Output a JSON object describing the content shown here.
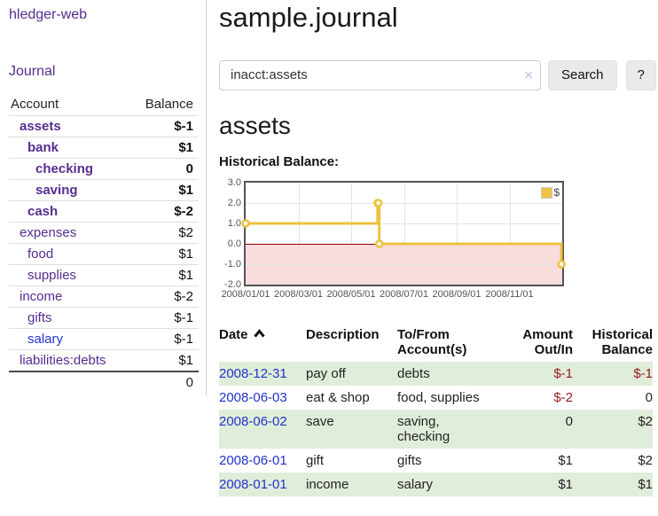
{
  "sidebar": {
    "brand": "hledger-web",
    "journal_link": "Journal",
    "accounts": {
      "col_account": "Account",
      "col_balance": "Balance",
      "rows": [
        {
          "account": "assets",
          "balance": "$-1",
          "indent": 1,
          "bold": true,
          "balance_class": "neg-strong",
          "link_class": "visited"
        },
        {
          "account": "bank",
          "balance": "$1",
          "indent": 2,
          "bold": true,
          "balance_class": "",
          "link_class": "visited"
        },
        {
          "account": "checking",
          "balance": "0",
          "indent": 3,
          "bold": true,
          "balance_class": "",
          "link_class": "visited"
        },
        {
          "account": "saving",
          "balance": "$1",
          "indent": 3,
          "bold": true,
          "balance_class": "",
          "link_class": "visited"
        },
        {
          "account": "cash",
          "balance": "$-2",
          "indent": 2,
          "bold": true,
          "balance_class": "neg-strong",
          "link_class": "visited"
        },
        {
          "account": "expenses",
          "balance": "$2",
          "indent": 1,
          "bold": false,
          "balance_class": "",
          "link_class": "visited"
        },
        {
          "account": "food",
          "balance": "$1",
          "indent": 2,
          "bold": false,
          "balance_class": "",
          "link_class": "visited"
        },
        {
          "account": "supplies",
          "balance": "$1",
          "indent": 2,
          "bold": false,
          "balance_class": "",
          "link_class": "visited"
        },
        {
          "account": "income",
          "balance": "$-2",
          "indent": 1,
          "bold": false,
          "balance_class": "neg-soft",
          "link_class": "visited"
        },
        {
          "account": "gifts",
          "balance": "$-1",
          "indent": 2,
          "bold": false,
          "balance_class": "neg-soft",
          "link_class": "visited"
        },
        {
          "account": "salary",
          "balance": "$-1",
          "indent": 2,
          "bold": false,
          "balance_class": "neg-soft",
          "link_class": "unvisited"
        },
        {
          "account": "liabilities:debts",
          "balance": "$1",
          "indent": 1,
          "bold": false,
          "balance_class": "",
          "link_class": "visited"
        }
      ],
      "total": "0"
    }
  },
  "main": {
    "title": "sample.journal",
    "search": {
      "value": "inacct:assets",
      "clear": "×",
      "search_button": "Search",
      "help_button": "?"
    },
    "heading": "assets",
    "chart_title": "Historical Balance:"
  },
  "chart_data": {
    "type": "line",
    "step": true,
    "title": "Historical Balance:",
    "series": [
      {
        "name": "$",
        "color": "#EDC240",
        "points": [
          [
            "2008/01/01",
            1
          ],
          [
            "2008/06/01",
            2
          ],
          [
            "2008/06/02",
            2
          ],
          [
            "2008/06/03",
            0
          ],
          [
            "2008/12/31",
            -1
          ]
        ]
      }
    ],
    "x_tick_labels": [
      "2008/01/01",
      "2008/03/01",
      "2008/05/01",
      "2008/07/01",
      "2008/09/01",
      "2008/11/01"
    ],
    "y_tick_labels": [
      "3.0",
      "2.0",
      "1.0",
      "0.0",
      "-1.0",
      "-2.0"
    ],
    "ylim": [
      -2,
      3
    ],
    "x_months_span": 12,
    "grid": true,
    "negative_region_color": "#f9dcdc",
    "zero_line_color": "#8b0000",
    "legend_position": "top-right"
  },
  "register": {
    "headers": {
      "date": "Date",
      "description": "Description",
      "accounts": "To/From\nAccount(s)",
      "amount": "Amount\nOut/In",
      "balance": "Historical\nBalance"
    },
    "sort_icon": "chevron-up",
    "rows": [
      {
        "date": "2008-12-31",
        "description": "pay off",
        "accounts": "debts",
        "amount": "$-1",
        "balance": "$-1",
        "amount_neg": true,
        "balance_neg": true
      },
      {
        "date": "2008-06-03",
        "description": "eat & shop",
        "accounts": "food, supplies",
        "amount": "$-2",
        "balance": "0",
        "amount_neg": true,
        "balance_neg": false
      },
      {
        "date": "2008-06-02",
        "description": "save",
        "accounts": "saving,\nchecking",
        "amount": "0",
        "balance": "$2",
        "amount_neg": false,
        "balance_neg": false
      },
      {
        "date": "2008-06-01",
        "description": "gift",
        "accounts": "gifts",
        "amount": "$1",
        "balance": "$2",
        "amount_neg": false,
        "balance_neg": false
      },
      {
        "date": "2008-01-01",
        "description": "income",
        "accounts": "salary",
        "amount": "$1",
        "balance": "$1",
        "amount_neg": false,
        "balance_neg": false
      }
    ]
  },
  "colors": {
    "link_purple": "#552e91",
    "link_blue": "#2633d0",
    "negative_strong": "#96181b",
    "negative_soft": "#c4817f",
    "row_stripe_green": "#e0edda",
    "series_gold": "#EDC240"
  }
}
